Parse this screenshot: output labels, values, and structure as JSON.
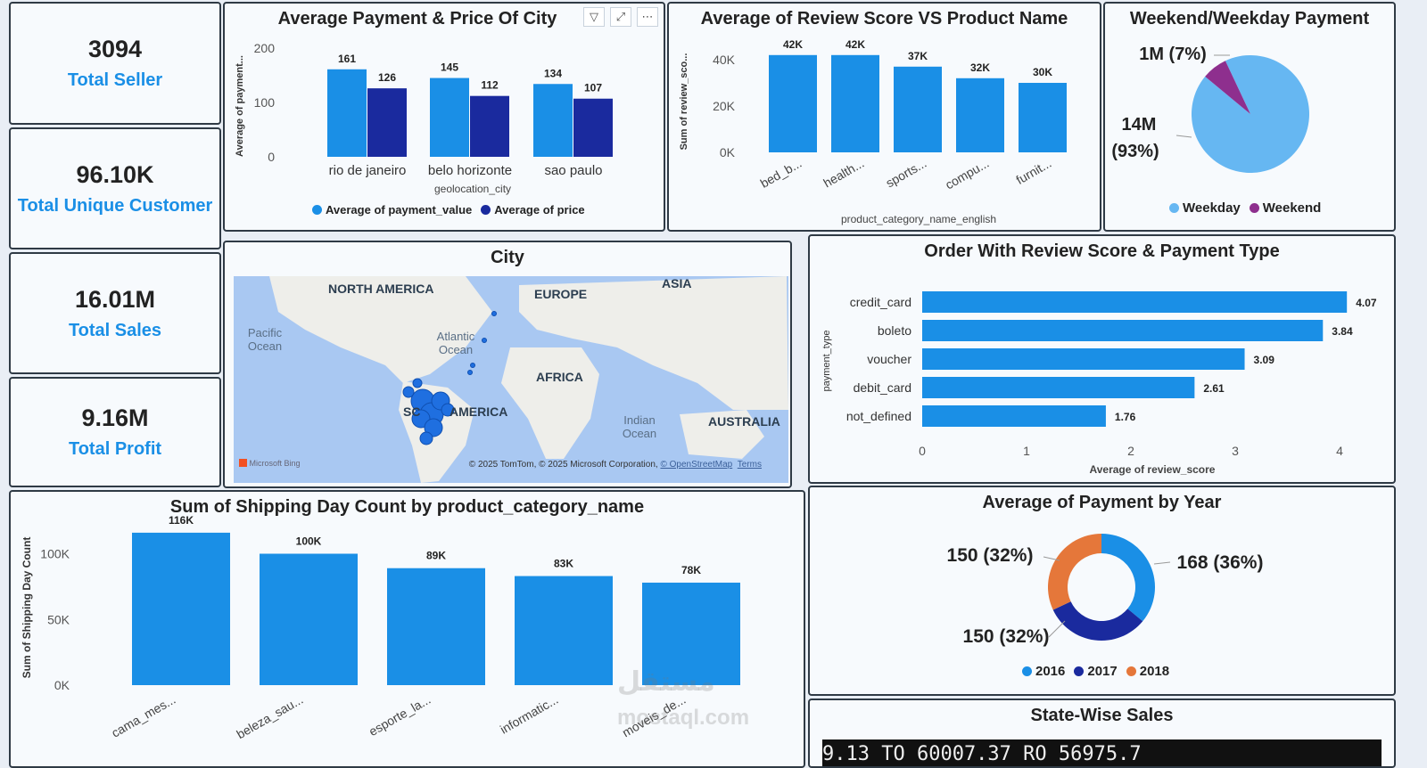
{
  "kpis": [
    {
      "value": "3094",
      "label": "Total Seller"
    },
    {
      "value": "96.10K",
      "label": "Total Unique Customer"
    },
    {
      "value": "16.01M",
      "label": "Total Sales"
    },
    {
      "value": "9.16M",
      "label": "Total Profit"
    }
  ],
  "toolbar": {
    "filter_icon": "filter-icon",
    "focus_icon": "focus-mode-icon",
    "more_icon": "more-options-icon"
  },
  "colors": {
    "light_blue": "#1a8fe6",
    "navy": "#1a2a9e",
    "pie_light": "#66b7f2",
    "purple": "#8e2f8e",
    "orange": "#e5773a"
  },
  "chart_data": [
    {
      "type": "bar",
      "title": "Average Payment & Price Of City",
      "xlabel": "geolocation_city",
      "ylabel": "Average of payment...",
      "categories": [
        "rio de janeiro",
        "belo horizonte",
        "sao paulo"
      ],
      "series": [
        {
          "name": "Average of payment_value",
          "values": [
            161,
            145,
            134
          ]
        },
        {
          "name": "Average of price",
          "values": [
            126,
            112,
            107
          ]
        }
      ],
      "ylim": [
        0,
        200
      ],
      "yticks": [
        "0",
        "100",
        "200"
      ],
      "legend": "bottom"
    },
    {
      "type": "bar",
      "title": "Average of Review Score VS Product Name",
      "xlabel": "product_category_name_english",
      "ylabel": "Sum of review_sco...",
      "categories": [
        "bed_b...",
        "health...",
        "sports...",
        "compu...",
        "furnit..."
      ],
      "values": [
        42000,
        42000,
        37000,
        32000,
        30000
      ],
      "data_labels": [
        "42K",
        "42K",
        "37K",
        "32K",
        "30K"
      ],
      "ylim": [
        0,
        45000
      ],
      "yticks": [
        "0K",
        "20K",
        "40K"
      ]
    },
    {
      "type": "pie",
      "title": "Weekend/Weekday Payment",
      "series": [
        {
          "name": "Weekday",
          "value": 93,
          "label": "14M (93%)"
        },
        {
          "name": "Weekend",
          "value": 7,
          "label": "1M (7%)"
        }
      ],
      "legend": "bottom"
    },
    {
      "type": "bar",
      "orientation": "horizontal",
      "title": "Order With Review Score & Payment Type",
      "xlabel": "Average of review_score",
      "ylabel": "payment_type",
      "categories": [
        "credit_card",
        "boleto",
        "voucher",
        "debit_card",
        "not_defined"
      ],
      "values": [
        4.07,
        3.84,
        3.09,
        2.61,
        1.76
      ],
      "data_labels": [
        "4.07",
        "3.84",
        "3.09",
        "2.61",
        "1.76"
      ],
      "xlim": [
        0,
        4.2
      ],
      "xticks": [
        "0",
        "1",
        "2",
        "3",
        "4"
      ]
    },
    {
      "type": "bar",
      "title": "Sum of Shipping Day Count by product_category_name",
      "ylabel": "Sum of Shipping Day Count",
      "categories": [
        "cama_mes...",
        "beleza_sau...",
        "esporte_la...",
        "informatic...",
        "moveis_de..."
      ],
      "values": [
        116000,
        100000,
        89000,
        83000,
        78000
      ],
      "data_labels": [
        "116K",
        "100K",
        "89K",
        "83K",
        "78K"
      ],
      "ylim": [
        0,
        120000
      ],
      "yticks": [
        "0K",
        "50K",
        "100K"
      ]
    },
    {
      "type": "pie",
      "subtype": "donut",
      "title": "Average of Payment by Year",
      "series": [
        {
          "name": "2016",
          "value": 36,
          "label": "168 (36%)"
        },
        {
          "name": "2017",
          "value": 32,
          "label": "150 (32%)"
        },
        {
          "name": "2018",
          "value": 32,
          "label": "150 (32%)"
        }
      ],
      "legend": "bottom"
    }
  ],
  "map": {
    "title": "City",
    "labels": [
      "NORTH AMERICA",
      "EUROPE",
      "ASIA",
      "AFRICA",
      "AMERICA",
      "AUSTRALIA",
      "SC"
    ],
    "oceans": [
      "Pacific Ocean",
      "Atlantic Ocean",
      "Indian Ocean"
    ],
    "attribution": "© 2025 TomTom, © 2025 Microsoft Corporation,",
    "osm_link": "© OpenStreetMap",
    "terms_link": "Terms",
    "bing_logo": "Microsoft Bing"
  },
  "state_sales": {
    "title": "State-Wise Sales",
    "strip_text": "9.13      TO 60007.37      RO 56975.7"
  },
  "watermark": {
    "line1": "مستقل",
    "line2": "mostaql.com"
  }
}
